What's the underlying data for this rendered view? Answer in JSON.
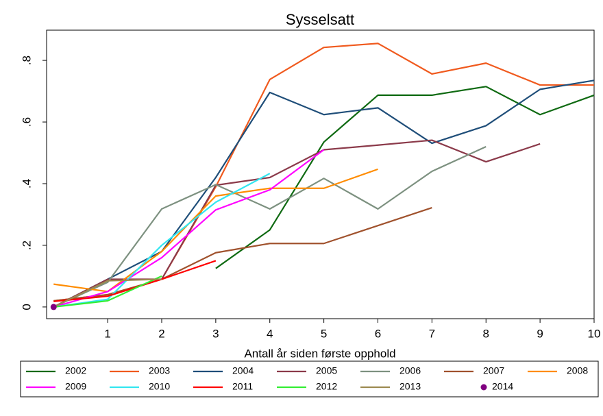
{
  "chart_data": {
    "type": "line",
    "title": "Sysselsatt",
    "x_label": "Antall år siden første opphold",
    "x": [
      0,
      1,
      2,
      3,
      4,
      5,
      6,
      7,
      8,
      9,
      10
    ],
    "xlim": [
      -0.13,
      10
    ],
    "xticks": [
      1,
      2,
      3,
      4,
      5,
      6,
      7,
      8,
      9,
      10
    ],
    "ylim": [
      -0.038,
      0.898
    ],
    "yticks": [
      0,
      {
        "value": 0.2,
        "label": ".2"
      },
      {
        "value": 0.4,
        "label": ".4"
      },
      {
        "value": 0.6,
        "label": ".6"
      },
      {
        "value": 0.8,
        "label": ".8"
      }
    ],
    "legend": "bottom",
    "series": [
      {
        "name": "2002",
        "color": "#0f6a12",
        "values": [
          null,
          null,
          null,
          0.125,
          0.25,
          0.535,
          0.687,
          0.687,
          0.715,
          0.624,
          0.687
        ]
      },
      {
        "name": "2003",
        "color": "#f05a1e",
        "values": [
          0.02,
          0.04,
          0.09,
          0.39,
          0.738,
          0.842,
          0.855,
          0.756,
          0.791,
          0.72,
          0.72
        ]
      },
      {
        "name": "2004",
        "color": "#1f4e79",
        "values": [
          0,
          0.09,
          0.18,
          0.42,
          0.696,
          0.624,
          0.646,
          0.531,
          0.588,
          0.706,
          0.735
        ]
      },
      {
        "name": "2005",
        "color": "#8b3a4a",
        "values": [
          0,
          0.09,
          0.09,
          0.395,
          0.42,
          0.51,
          0.525,
          0.541,
          0.471,
          0.529,
          null
        ]
      },
      {
        "name": "2006",
        "color": "#7d9180",
        "values": [
          0,
          0.08,
          0.318,
          0.397,
          0.318,
          0.417,
          0.318,
          0.44,
          0.52,
          null,
          null
        ]
      },
      {
        "name": "2007",
        "color": "#a0522d",
        "values": [
          0.02,
          0.04,
          0.09,
          0.176,
          0.206,
          0.206,
          0.264,
          0.322,
          null,
          null,
          null
        ]
      },
      {
        "name": "2008",
        "color": "#ff8c00",
        "values": [
          0.074,
          0.05,
          0.18,
          0.36,
          0.385,
          0.385,
          0.447,
          null,
          null,
          null,
          null
        ]
      },
      {
        "name": "2009",
        "color": "#ff00ff",
        "values": [
          0,
          0.05,
          0.16,
          0.315,
          0.38,
          0.51,
          null,
          null,
          null,
          null,
          null
        ]
      },
      {
        "name": "2010",
        "color": "#33e6f0",
        "values": [
          0,
          0.025,
          0.2,
          0.34,
          0.433,
          null,
          null,
          null,
          null,
          null,
          null
        ]
      },
      {
        "name": "2011",
        "color": "#ff0000",
        "values": [
          0.018,
          0.035,
          0.09,
          0.15,
          null,
          null,
          null,
          null,
          null,
          null,
          null
        ]
      },
      {
        "name": "2012",
        "color": "#33ee33",
        "values": [
          0,
          0.02,
          0.1,
          null,
          null,
          null,
          null,
          null,
          null,
          null,
          null
        ]
      },
      {
        "name": "2013",
        "color": "#9c8a50",
        "values": [
          0,
          0.085,
          0.09,
          null,
          null,
          null,
          null,
          null,
          null,
          null,
          null
        ]
      },
      {
        "name": "2014",
        "color": "#800080",
        "mode": "marker",
        "values": [
          0,
          null,
          null,
          null,
          null,
          null,
          null,
          null,
          null,
          null,
          null
        ]
      }
    ]
  }
}
